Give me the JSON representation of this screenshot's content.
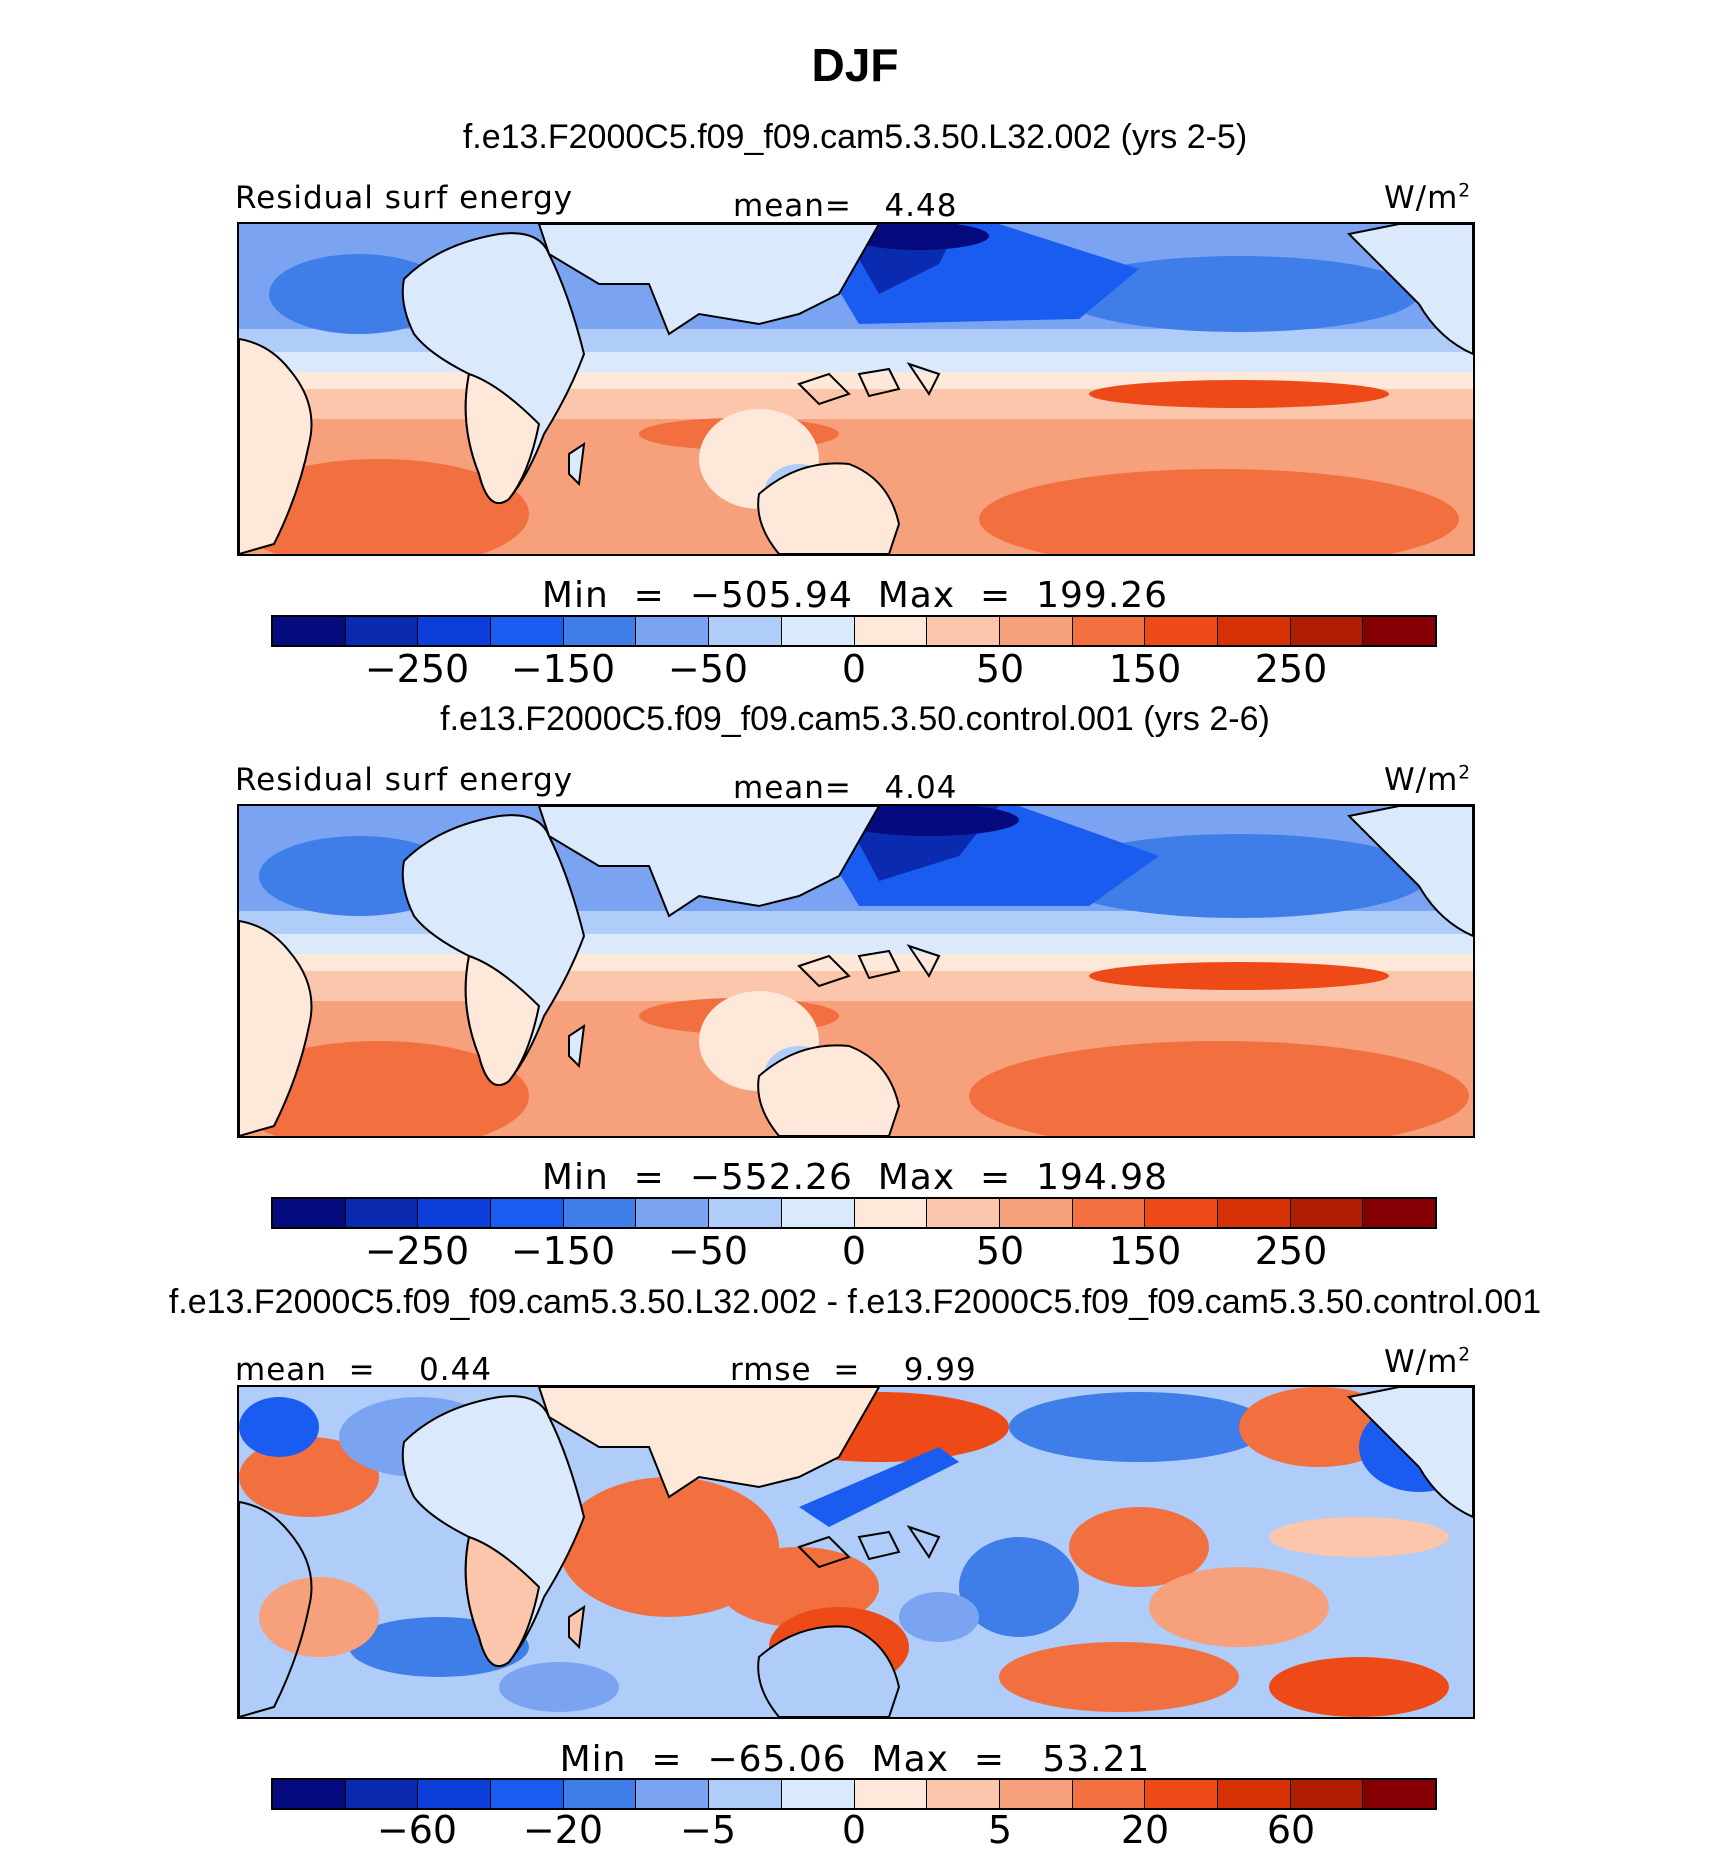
{
  "title": "DJF",
  "colors": {
    "palette": [
      "#050a7e",
      "#0a2ab0",
      "#0b3fd7",
      "#1a5cf0",
      "#3f7de8",
      "#7aa4f2",
      "#b0ccf8",
      "#dbe9fc",
      "#fde8da",
      "#fcc6ad",
      "#f7a07c",
      "#f2703f",
      "#ee4a18",
      "#d63205",
      "#b01d05",
      "#850004"
    ],
    "coast": "#000000",
    "land_tint_top": "#dbe9fc",
    "aus_tint": "#fde8da"
  },
  "panels": [
    {
      "case_title": "f.e13.F2000C5.f09_f09.cam5.3.50.L32.002 (yrs 2-5)",
      "left_label": "Residual surf energy",
      "center_label": "mean=   4.48",
      "units": "W/m",
      "units_sup": "2",
      "min_max": "Min  =  −505.94  Max  =  199.26",
      "colorbar_ticks": [
        "−250",
        "−150",
        "−50",
        "0",
        "50",
        "150",
        "250"
      ]
    },
    {
      "case_title": "f.e13.F2000C5.f09_f09.cam5.3.50.control.001 (yrs 2-6)",
      "left_label": "Residual surf energy",
      "center_label": "mean=   4.04",
      "units": "W/m",
      "units_sup": "2",
      "min_max": "Min  =  −552.26  Max  =  194.98",
      "colorbar_ticks": [
        "−250",
        "−150",
        "−50",
        "0",
        "50",
        "150",
        "250"
      ]
    },
    {
      "case_title": "f.e13.F2000C5.f09_f09.cam5.3.50.L32.002 - f.e13.F2000C5.f09_f09.cam5.3.50.control.001",
      "left_label": "mean  =    0.44",
      "center_label": "rmse  =    9.99",
      "units": "W/m",
      "units_sup": "2",
      "min_max": "Min  =  −65.06  Max  =   53.21",
      "colorbar_ticks": [
        "−60",
        "−20",
        "−5",
        "0",
        "5",
        "20",
        "60"
      ]
    }
  ]
}
